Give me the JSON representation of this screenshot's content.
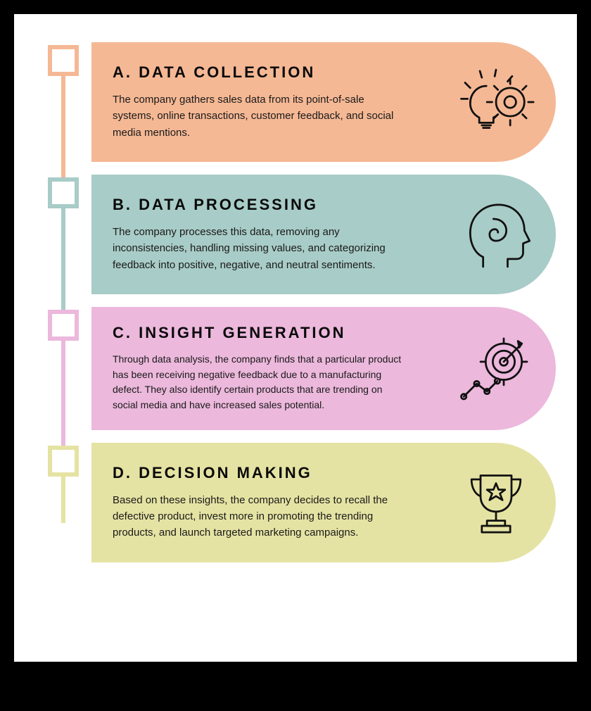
{
  "infographic": {
    "type": "infographic",
    "background_color": "#ffffff",
    "outer_background": "#000000",
    "title_fontsize": 22,
    "title_fontweight": 800,
    "title_letter_spacing": 3,
    "body_fontsize": 15,
    "body_line_height": 1.55,
    "text_color": "#0a0a0a",
    "card_border_radius_right": 110,
    "marker_size": 44,
    "marker_border_width": 6,
    "connector_width": 6,
    "icon_stroke": "#111111",
    "icon_stroke_width": 3,
    "steps": [
      {
        "key": "a",
        "title": "A. DATA COLLECTION",
        "body": "The company gathers sales data from its point-of-sale systems, online transactions, customer feedback, and social media mentions.",
        "color": "#f5b894",
        "icon": "idea-gear-icon",
        "connector_height": 200
      },
      {
        "key": "b",
        "title": "B. DATA PROCESSING",
        "body": "The company processes this data, removing any inconsistencies, handling missing values, and categorizing feedback into positive, negative, and neutral sentiments.",
        "color": "#a8ccc7",
        "icon": "thinking-head-icon",
        "connector_height": 210
      },
      {
        "key": "c",
        "title": "C. INSIGHT GENERATION",
        "body": "Through data analysis, the company finds that a particular product has been receiving negative feedback due to a manufacturing defect. They also identify certain products that are trending on social media and have increased sales potential.",
        "color": "#ecb8dc",
        "icon": "target-analytics-icon",
        "connector_height": 220
      },
      {
        "key": "d",
        "title": "D. DECISION MAKING",
        "body": "Based on these insights, the company decides to recall the defective product, invest more in promoting the trending products, and launch targeted marketing campaigns.",
        "color": "#e5e3a3",
        "icon": "trophy-icon",
        "connector_height": 70
      }
    ]
  }
}
